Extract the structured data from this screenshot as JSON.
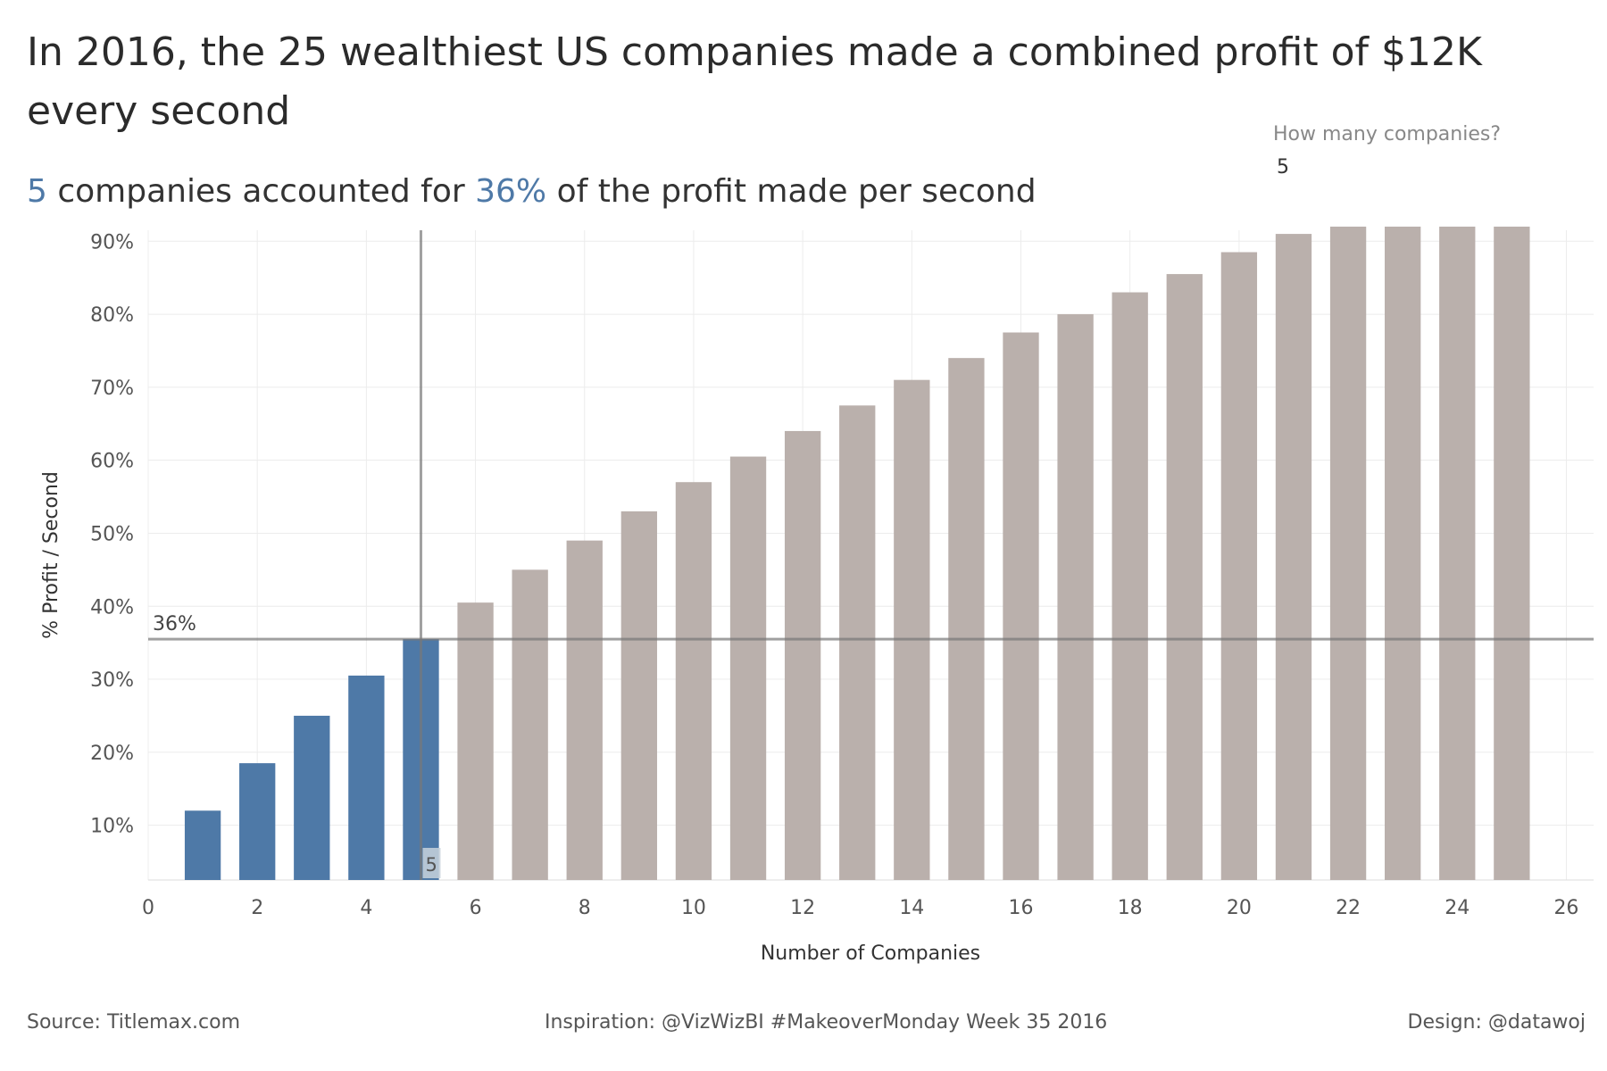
{
  "header": {
    "title": "In 2016, the 25 wealthiest US companies made a combined profit of $12K every second",
    "subtitle": {
      "count": "5",
      "part1": " companies accounted for ",
      "pct": "36%",
      "part2": " of the profit made per second"
    }
  },
  "parameter": {
    "label": "How many companies?",
    "value": "5"
  },
  "chart_data": {
    "type": "bar",
    "xlabel": "Number of Companies",
    "ylabel": "% Profit / Second",
    "x": [
      1,
      2,
      3,
      4,
      5,
      6,
      7,
      8,
      9,
      10,
      11,
      12,
      13,
      14,
      15,
      16,
      17,
      18,
      19,
      20,
      21,
      22,
      23,
      24,
      25
    ],
    "values": [
      12,
      18.5,
      25,
      30.5,
      35.5,
      40.5,
      45,
      49,
      53,
      57,
      60.5,
      64,
      67.5,
      71,
      74,
      77.5,
      80,
      83,
      85.5,
      88.5,
      91,
      92,
      92,
      92,
      92
    ],
    "xlim": [
      0,
      26.5
    ],
    "ylim": [
      2.5,
      91.5
    ],
    "xticks": [
      0,
      2,
      4,
      6,
      8,
      10,
      12,
      14,
      16,
      18,
      20,
      22,
      24,
      26
    ],
    "yticks": [
      10,
      20,
      30,
      40,
      50,
      60,
      70,
      80,
      90
    ],
    "ytick_labels": [
      "10%",
      "20%",
      "30%",
      "40%",
      "50%",
      "60%",
      "70%",
      "80%",
      "90%"
    ],
    "selected_count": 5,
    "selected_count_label": "5",
    "reference_value": 35.5,
    "reference_label": "36%",
    "colors": {
      "selected": "#4e79a7",
      "other": "#bab0ac",
      "reference_line": "#999999",
      "grid": "#ececec"
    }
  },
  "footer": {
    "source": "Source: Titlemax.com",
    "inspiration": "Inspiration: @VizWizBI #MakeoverMonday Week 35 2016",
    "design": "Design: @datawoj"
  }
}
